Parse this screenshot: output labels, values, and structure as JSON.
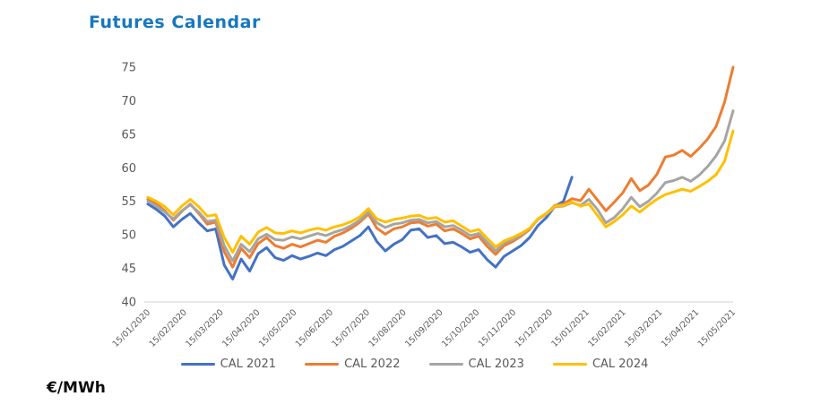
{
  "title": "Futures Calendar",
  "unit_label": "€/MWh",
  "chart_data": {
    "type": "line",
    "title": "Futures Calendar",
    "ylabel": "€/MWh",
    "ylim": [
      40,
      75
    ],
    "y_ticks": [
      40,
      45,
      50,
      55,
      60,
      65,
      70,
      75
    ],
    "x_tick_labels": [
      "15/01/2020",
      "15/02/2020",
      "15/03/2020",
      "15/04/2020",
      "15/05/2020",
      "15/06/2020",
      "15/07/2020",
      "15/08/2020",
      "15/09/2020",
      "15/10/2020",
      "15/11/2020",
      "15/12/2020",
      "15/01/2021",
      "15/02/2021",
      "15/03/2021",
      "15/04/2021",
      "15/05/2021"
    ],
    "grid": false,
    "legend_position": "bottom",
    "axis_line_color": "#d9d9d9",
    "tick_label_color": "#595959",
    "x_total_points": 70,
    "x_range_note": "points are weekly samples from 15/01/2020 to 15/05/2021; CAL 2021 stops trading end of Dec 2020",
    "series": [
      {
        "name": "CAL 2021",
        "color": "#4472C4",
        "values": [
          54.6,
          53.8,
          52.8,
          51.2,
          52.3,
          53.2,
          51.8,
          50.6,
          50.9,
          45.5,
          43.4,
          46.4,
          44.6,
          47.2,
          48.1,
          46.6,
          46.2,
          46.9,
          46.4,
          46.8,
          47.3,
          46.9,
          47.8,
          48.3,
          49.1,
          49.9,
          51.2,
          49.0,
          47.6,
          48.6,
          49.3,
          50.7,
          50.9,
          49.6,
          49.9,
          48.7,
          48.9,
          48.2,
          47.4,
          47.8,
          46.3,
          45.2,
          46.8,
          47.6,
          48.4,
          49.6,
          51.4,
          52.6,
          54.3,
          55.0,
          58.6
        ]
      },
      {
        "name": "CAL 2022",
        "color": "#ED7D31",
        "values": [
          55.3,
          54.6,
          53.6,
          52.2,
          53.5,
          54.6,
          53.2,
          51.6,
          51.9,
          47.5,
          45.2,
          48.0,
          46.6,
          48.7,
          49.6,
          48.4,
          48.0,
          48.6,
          48.2,
          48.7,
          49.2,
          48.9,
          49.8,
          50.3,
          51.0,
          51.9,
          53.1,
          51.0,
          50.1,
          50.9,
          51.2,
          51.8,
          51.9,
          51.3,
          51.6,
          50.6,
          50.9,
          50.2,
          49.4,
          49.8,
          48.3,
          47.1,
          48.4,
          49.0,
          49.8,
          50.8,
          52.4,
          53.2,
          54.4,
          54.6,
          55.4,
          55.1,
          56.8,
          55.2,
          53.6,
          54.9,
          56.3,
          58.4,
          56.6,
          57.4,
          59.0,
          61.6,
          61.9,
          62.6,
          61.7,
          62.9,
          64.3,
          66.2,
          69.8,
          75.0
        ]
      },
      {
        "name": "CAL 2023",
        "color": "#A5A5A5",
        "values": [
          55.0,
          54.3,
          53.4,
          52.4,
          53.6,
          54.5,
          53.4,
          52.0,
          52.2,
          48.4,
          46.1,
          48.6,
          47.5,
          49.4,
          50.1,
          49.3,
          49.2,
          49.7,
          49.4,
          49.8,
          50.2,
          49.9,
          50.4,
          50.8,
          51.4,
          52.2,
          53.4,
          51.8,
          51.1,
          51.6,
          51.8,
          52.2,
          52.3,
          51.8,
          52.0,
          51.2,
          51.4,
          50.7,
          49.9,
          50.2,
          48.9,
          47.6,
          48.8,
          49.3,
          50.0,
          50.9,
          52.3,
          53.1,
          54.2,
          54.3,
          54.8,
          54.4,
          55.3,
          53.8,
          51.8,
          52.6,
          53.9,
          55.6,
          54.2,
          55.0,
          56.2,
          57.8,
          58.1,
          58.6,
          58.0,
          58.9,
          60.2,
          61.8,
          64.0,
          68.5
        ]
      },
      {
        "name": "CAL 2024",
        "color": "#FFC000",
        "values": [
          55.6,
          55.0,
          54.2,
          53.0,
          54.3,
          55.3,
          54.2,
          52.8,
          53.0,
          49.6,
          47.4,
          49.8,
          48.6,
          50.4,
          51.1,
          50.3,
          50.2,
          50.6,
          50.3,
          50.7,
          51.0,
          50.7,
          51.2,
          51.5,
          52.0,
          52.7,
          53.9,
          52.4,
          51.9,
          52.3,
          52.5,
          52.8,
          52.9,
          52.4,
          52.6,
          51.9,
          52.1,
          51.3,
          50.5,
          50.8,
          49.5,
          48.2,
          49.1,
          49.6,
          50.2,
          51.0,
          52.4,
          53.2,
          54.3,
          54.4,
          54.9,
          54.3,
          54.6,
          52.9,
          51.2,
          52.0,
          53.0,
          54.3,
          53.4,
          54.4,
          55.3,
          56.0,
          56.4,
          56.8,
          56.5,
          57.2,
          58.0,
          59.0,
          61.0,
          65.5
        ]
      }
    ]
  }
}
